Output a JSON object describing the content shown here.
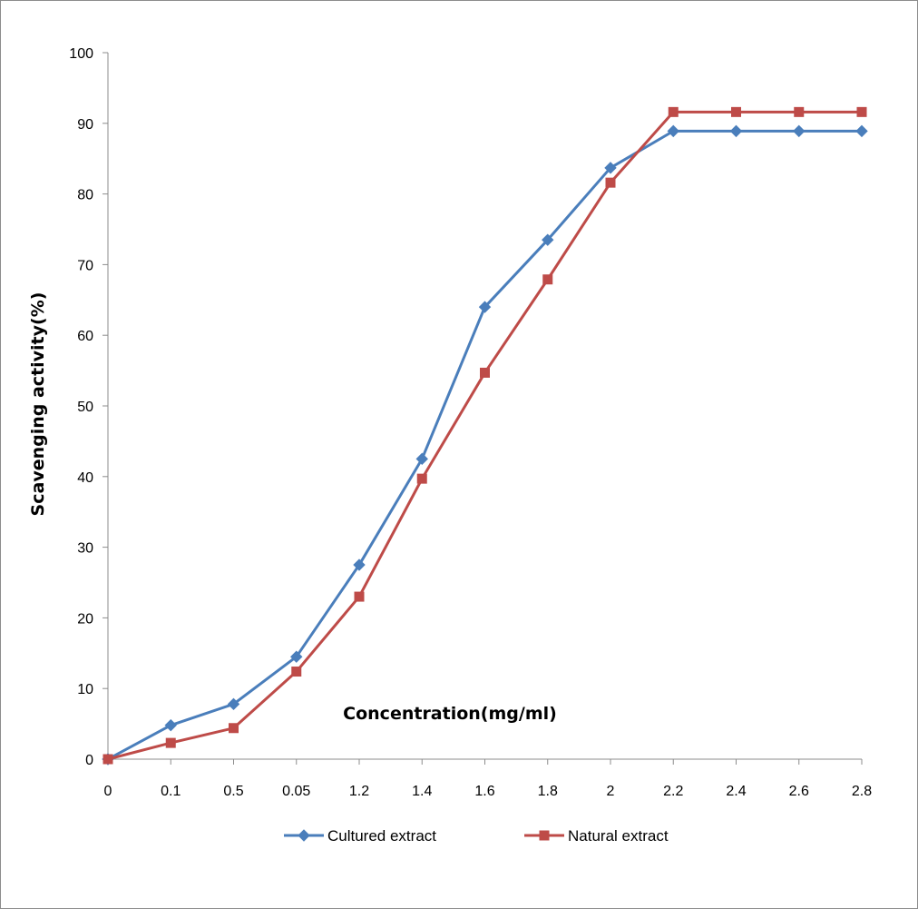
{
  "chart_data": {
    "type": "line",
    "title": "",
    "xlabel": "Concentration(mg/ml)",
    "ylabel": "Scavenging activity(%)",
    "categories": [
      "0",
      "0.1",
      "0.5",
      "0.05",
      "1.2",
      "1.4",
      "1.6",
      "1.8",
      "2",
      "2.2",
      "2.4",
      "2.6",
      "2.8"
    ],
    "ylim": [
      0,
      100
    ],
    "yticks": [
      "0",
      "10",
      "20",
      "30",
      "40",
      "50",
      "60",
      "70",
      "80",
      "90",
      "100"
    ],
    "grid": false,
    "legend_position": "bottom",
    "series": [
      {
        "name": "Cultured extract",
        "color": "#4a7ebb",
        "marker": "diamond",
        "values": [
          0,
          4.8,
          7.8,
          14.5,
          27.5,
          42.5,
          64,
          73.5,
          83.7,
          88.9,
          88.9,
          88.9,
          88.9
        ]
      },
      {
        "name": "Natural extract",
        "color": "#be4b48",
        "marker": "square",
        "values": [
          0,
          2.3,
          4.4,
          12.4,
          23,
          39.7,
          54.7,
          67.9,
          81.6,
          91.6,
          91.6,
          91.6,
          91.6
        ]
      }
    ]
  }
}
